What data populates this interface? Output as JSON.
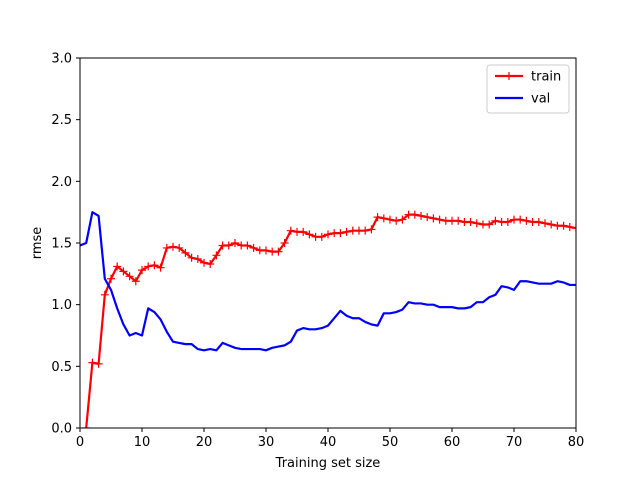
{
  "chart_data": {
    "type": "line",
    "title": "",
    "xlabel": "Training set size",
    "ylabel": "rmse",
    "xlim": [
      0,
      80
    ],
    "ylim": [
      0,
      3.0
    ],
    "xticks": [
      "0",
      "10",
      "20",
      "30",
      "40",
      "50",
      "60",
      "70",
      "80"
    ],
    "yticks": [
      "0.0",
      "0.5",
      "1.0",
      "1.5",
      "2.0",
      "2.5",
      "3.0"
    ],
    "grid": false,
    "legend_position": "top-right",
    "series": [
      {
        "name": "train",
        "color": "#ff0000",
        "marker": "plus",
        "x": [
          1,
          2,
          3,
          4,
          5,
          6,
          7,
          8,
          9,
          10,
          11,
          12,
          13,
          14,
          15,
          16,
          17,
          18,
          19,
          20,
          21,
          22,
          23,
          24,
          25,
          26,
          27,
          28,
          29,
          30,
          31,
          32,
          33,
          34,
          35,
          36,
          37,
          38,
          39,
          40,
          41,
          42,
          43,
          44,
          45,
          46,
          47,
          48,
          49,
          50,
          51,
          52,
          53,
          54,
          55,
          56,
          57,
          58,
          59,
          60,
          61,
          62,
          63,
          64,
          65,
          66,
          67,
          68,
          69,
          70,
          71,
          72,
          73,
          74,
          75,
          76,
          77,
          78,
          79,
          80
        ],
        "y": [
          0.0,
          0.53,
          0.52,
          1.08,
          1.21,
          1.31,
          1.27,
          1.23,
          1.19,
          1.28,
          1.31,
          1.32,
          1.3,
          1.46,
          1.47,
          1.46,
          1.42,
          1.38,
          1.37,
          1.34,
          1.33,
          1.4,
          1.48,
          1.48,
          1.5,
          1.48,
          1.48,
          1.46,
          1.44,
          1.44,
          1.43,
          1.43,
          1.5,
          1.6,
          1.59,
          1.59,
          1.57,
          1.55,
          1.55,
          1.57,
          1.58,
          1.58,
          1.59,
          1.6,
          1.6,
          1.6,
          1.61,
          1.71,
          1.7,
          1.69,
          1.68,
          1.69,
          1.73,
          1.73,
          1.72,
          1.71,
          1.7,
          1.69,
          1.68,
          1.68,
          1.68,
          1.67,
          1.67,
          1.66,
          1.65,
          1.65,
          1.68,
          1.67,
          1.67,
          1.69,
          1.69,
          1.68,
          1.67,
          1.67,
          1.66,
          1.65,
          1.64,
          1.64,
          1.63,
          1.62
        ]
      },
      {
        "name": "val",
        "color": "#0000ff",
        "marker": "none",
        "x": [
          0,
          1,
          2,
          3,
          4,
          5,
          6,
          7,
          8,
          9,
          10,
          11,
          12,
          13,
          14,
          15,
          16,
          17,
          18,
          19,
          20,
          21,
          22,
          23,
          24,
          25,
          26,
          27,
          28,
          29,
          30,
          31,
          32,
          33,
          34,
          35,
          36,
          37,
          38,
          39,
          40,
          41,
          42,
          43,
          44,
          45,
          46,
          47,
          48,
          49,
          50,
          51,
          52,
          53,
          54,
          55,
          56,
          57,
          58,
          59,
          60,
          61,
          62,
          63,
          64,
          65,
          66,
          67,
          68,
          69,
          70,
          71,
          72,
          73,
          74,
          75,
          76,
          77,
          78,
          79,
          80
        ],
        "y": [
          1.48,
          1.5,
          1.75,
          1.72,
          1.21,
          1.12,
          0.97,
          0.84,
          0.75,
          0.77,
          0.75,
          0.97,
          0.94,
          0.88,
          0.78,
          0.7,
          0.69,
          0.68,
          0.68,
          0.64,
          0.63,
          0.64,
          0.63,
          0.69,
          0.67,
          0.65,
          0.64,
          0.64,
          0.64,
          0.64,
          0.63,
          0.65,
          0.66,
          0.67,
          0.7,
          0.79,
          0.81,
          0.8,
          0.8,
          0.81,
          0.83,
          0.89,
          0.95,
          0.91,
          0.89,
          0.89,
          0.86,
          0.84,
          0.83,
          0.93,
          0.93,
          0.94,
          0.96,
          1.02,
          1.01,
          1.01,
          1.0,
          1.0,
          0.98,
          0.98,
          0.98,
          0.97,
          0.97,
          0.98,
          1.02,
          1.02,
          1.06,
          1.08,
          1.15,
          1.14,
          1.12,
          1.19,
          1.19,
          1.18,
          1.17,
          1.17,
          1.17,
          1.19,
          1.18,
          1.16,
          1.16
        ]
      }
    ]
  }
}
